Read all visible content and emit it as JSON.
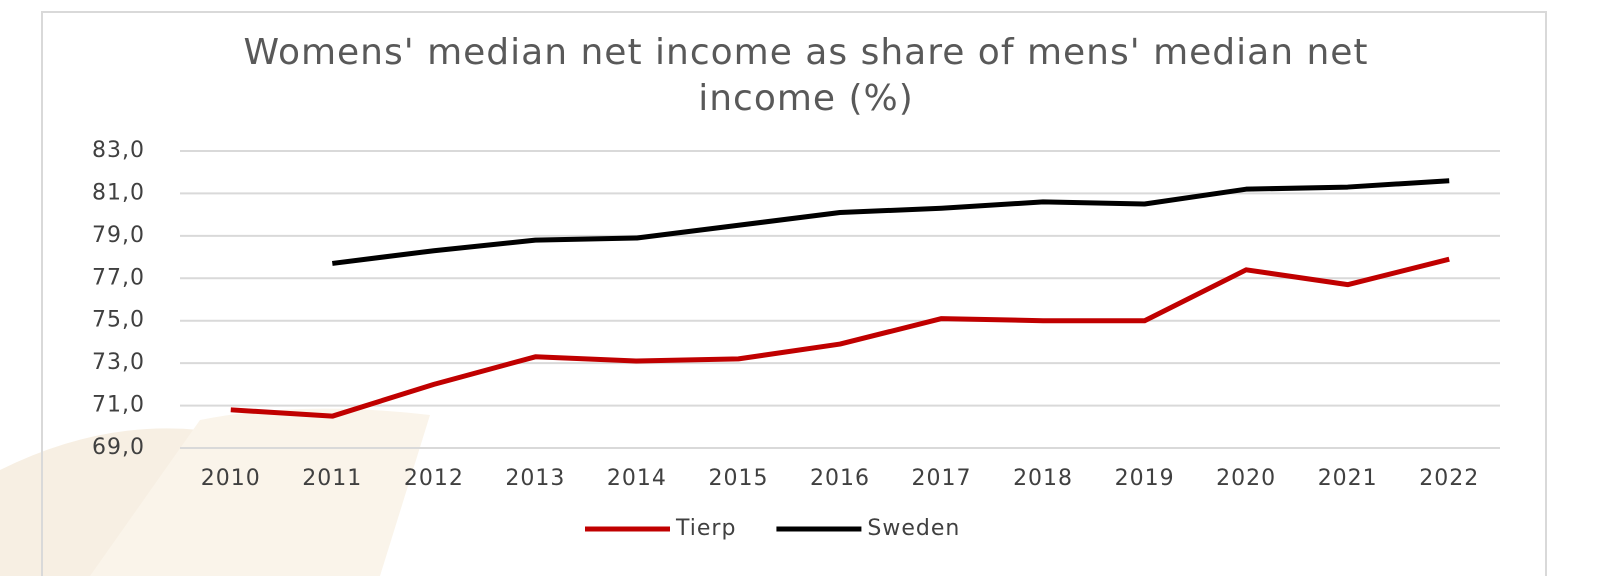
{
  "chart_data": {
    "type": "line",
    "title": "Womens' median net income as share of mens' median net income (%)",
    "categories": [
      "2010",
      "2011",
      "2012",
      "2013",
      "2014",
      "2015",
      "2016",
      "2017",
      "2018",
      "2019",
      "2020",
      "2021",
      "2022"
    ],
    "series": [
      {
        "name": "Tierp",
        "color": "#c00000",
        "values": [
          70.8,
          70.5,
          72.0,
          73.3,
          73.1,
          73.2,
          73.9,
          75.1,
          75.0,
          75.0,
          77.4,
          76.7,
          77.9
        ]
      },
      {
        "name": "Sweden",
        "color": "#000000",
        "values": [
          null,
          77.7,
          78.3,
          78.8,
          78.9,
          79.5,
          80.1,
          80.3,
          80.6,
          80.5,
          81.2,
          81.3,
          81.6
        ]
      }
    ],
    "ylim": [
      69,
      83
    ],
    "yticks": [
      {
        "value": 69,
        "label": "69,0"
      },
      {
        "value": 71,
        "label": "71,0"
      },
      {
        "value": 73,
        "label": "73,0"
      },
      {
        "value": 75,
        "label": "75,0"
      },
      {
        "value": 77,
        "label": "77,0"
      },
      {
        "value": 79,
        "label": "79,0"
      },
      {
        "value": 81,
        "label": "81,0"
      },
      {
        "value": 83,
        "label": "83,0"
      }
    ],
    "grid": true,
    "legend": "bottom"
  }
}
